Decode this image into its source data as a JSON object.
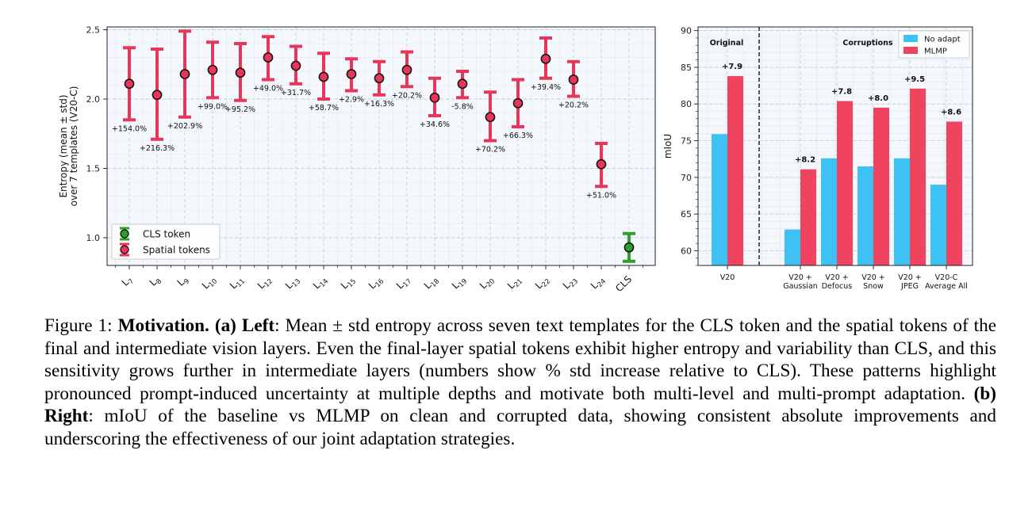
{
  "chart_data": [
    {
      "type": "errorbar",
      "ylabel": "Entropy (mean ± std)\nover 7 templates (V20-C)",
      "ylim": [
        0.8,
        2.52
      ],
      "yticks": [
        1.0,
        1.5,
        2.0,
        2.5
      ],
      "ytick_labels": [
        "1.0",
        "1.5",
        "2.0",
        "2.5"
      ],
      "grid": true,
      "legend_position": "lower-left",
      "legend": [
        {
          "label": "CLS token",
          "color": "#2ca02c"
        },
        {
          "label": "Spatial tokens",
          "color": "#e8365a"
        }
      ],
      "categories": [
        "L7",
        "L8",
        "L9",
        "L10",
        "L11",
        "L12",
        "L13",
        "L14",
        "L15",
        "L16",
        "L17",
        "L18",
        "L19",
        "L20",
        "L21",
        "L22",
        "L23",
        "L24",
        "CLS"
      ],
      "category_labels": [
        {
          "base": "L",
          "sub": "7"
        },
        {
          "base": "L",
          "sub": "8"
        },
        {
          "base": "L",
          "sub": "9"
        },
        {
          "base": "L",
          "sub": "10"
        },
        {
          "base": "L",
          "sub": "11"
        },
        {
          "base": "L",
          "sub": "12"
        },
        {
          "base": "L",
          "sub": "13"
        },
        {
          "base": "L",
          "sub": "14"
        },
        {
          "base": "L",
          "sub": "15"
        },
        {
          "base": "L",
          "sub": "16"
        },
        {
          "base": "L",
          "sub": "17"
        },
        {
          "base": "L",
          "sub": "18"
        },
        {
          "base": "L",
          "sub": "19"
        },
        {
          "base": "L",
          "sub": "20"
        },
        {
          "base": "L",
          "sub": "21"
        },
        {
          "base": "L",
          "sub": "22"
        },
        {
          "base": "L",
          "sub": "23"
        },
        {
          "base": "L",
          "sub": "24"
        },
        {
          "base": "CLS",
          "sub": ""
        }
      ],
      "series": [
        {
          "name": "Spatial tokens",
          "color": "#e8365a",
          "mean": [
            2.11,
            2.03,
            2.18,
            2.21,
            2.19,
            2.3,
            2.24,
            2.16,
            2.18,
            2.15,
            2.21,
            2.01,
            2.11,
            1.87,
            1.97,
            2.29,
            2.14,
            1.53
          ],
          "low": [
            1.85,
            1.71,
            1.87,
            2.01,
            1.99,
            2.14,
            2.11,
            2.0,
            2.06,
            2.03,
            2.09,
            1.88,
            2.01,
            1.7,
            1.8,
            2.15,
            2.02,
            1.37
          ],
          "high": [
            2.37,
            2.36,
            2.49,
            2.41,
            2.4,
            2.45,
            2.38,
            2.33,
            2.29,
            2.27,
            2.34,
            2.15,
            2.2,
            2.05,
            2.14,
            2.44,
            2.27,
            1.68
          ],
          "annotations": [
            "+154.0%",
            "+216.3%",
            "+202.9%",
            "+99.0%",
            "+95.2%",
            "+49.0%",
            "+31.7%",
            "+58.7%",
            "+2.9%",
            "+16.3%",
            "+20.2%",
            "+34.6%",
            "-5.8%",
            "+70.2%",
            "+66.3%",
            "+39.4%",
            "+20.2%",
            "+51.0%"
          ]
        },
        {
          "name": "CLS token",
          "color": "#2ca02c",
          "mean": [
            0.93
          ],
          "low": [
            0.83
          ],
          "high": [
            1.03
          ]
        }
      ]
    },
    {
      "type": "bar",
      "ylabel": "mIoU",
      "ylim": [
        58,
        90.5
      ],
      "yticks": [
        60,
        65,
        70,
        75,
        80,
        85,
        90
      ],
      "ytick_labels": [
        "60",
        "65",
        "70",
        "75",
        "80",
        "85",
        "90"
      ],
      "grid": true,
      "legend_position": "top-right",
      "section_labels": {
        "original": "Original",
        "corruptions": "Corruptions"
      },
      "categories": [
        "V20",
        "V20 +\nGaussian",
        "V20 +\nDefocus",
        "V20 +\nSnow",
        "V20 +\nJPEG",
        "V20-C\nAverage All"
      ],
      "category_lines": [
        [
          "V20"
        ],
        [
          "V20 +",
          "Gaussian"
        ],
        [
          "V20 +",
          "Defocus"
        ],
        [
          "V20 +",
          "Snow"
        ],
        [
          "V20 +",
          "JPEG"
        ],
        [
          "V20-C",
          "Average All"
        ]
      ],
      "series": [
        {
          "name": "No adapt",
          "color": "#3ec1f5",
          "values": [
            75.9,
            62.9,
            72.6,
            71.5,
            72.6,
            69.0
          ]
        },
        {
          "name": "MLMP",
          "color": "#f0435f",
          "values": [
            83.8,
            71.1,
            80.4,
            79.5,
            82.1,
            77.6
          ]
        }
      ],
      "gains": [
        "+7.9",
        "+8.2",
        "+7.8",
        "+8.0",
        "+9.5",
        "+8.6"
      ]
    }
  ],
  "caption": {
    "figure_label": "Figure 1: ",
    "bold_title": "Motivation.",
    "part_a_bold": "(a) Left",
    "part_a_text": ": Mean ± std entropy across seven text templates for the CLS token and the spatial tokens of the final and intermediate vision layers. Even the final-layer spatial tokens exhibit higher entropy and variability than CLS, and this sensitivity grows further in intermediate layers (numbers show % std increase relative to CLS). These patterns highlight pronounced prompt-induced uncertainty at multiple depths and motivate both multi-level and multi-prompt adaptation.",
    "part_b_bold": "(b) Right",
    "part_b_text": ": mIoU of the baseline vs MLMP on clean and corrupted data, showing consistent absolute improvements and underscoring the effectiveness of our joint adaptation strategies."
  }
}
